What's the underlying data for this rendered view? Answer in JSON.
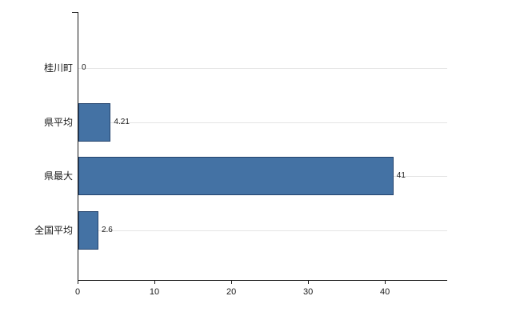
{
  "chart_data": {
    "type": "bar",
    "orientation": "horizontal",
    "title": "",
    "categories": [
      "桂川町",
      "県平均",
      "県最大",
      "全国平均"
    ],
    "values": [
      0,
      4.21,
      41,
      2.6
    ],
    "value_labels": [
      "0",
      "4.21",
      "41",
      "2.6"
    ],
    "x_tick_labels": [
      "0",
      "10",
      "20",
      "30",
      "40"
    ],
    "x_tick_values": [
      0,
      10,
      20,
      30,
      40
    ],
    "xlim": [
      0,
      48
    ],
    "grid": true,
    "legend": false,
    "bar_color": "#4472a4",
    "bar_border_color": "#24446e",
    "grid_color": "#e4e4e4",
    "axis_color": "#1a1a1a",
    "label_color": "#1a1a1a"
  }
}
